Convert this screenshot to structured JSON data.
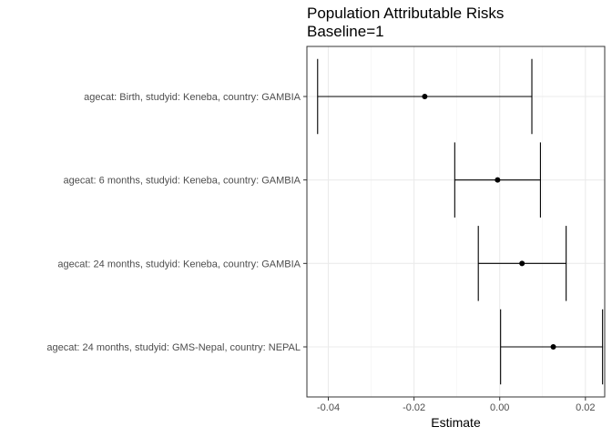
{
  "chart_data": {
    "type": "errorbar",
    "title": [
      "Population Attributable Risks",
      "Baseline=1"
    ],
    "xlabel": "Estimate",
    "ylabel": "",
    "xlim": [
      -0.045,
      0.0245
    ],
    "xticks": [
      -0.04,
      -0.02,
      0.0,
      0.02
    ],
    "xtick_labels": [
      "-0.04",
      "-0.02",
      "0.00",
      "0.02"
    ],
    "grid": true,
    "categories": [
      "agecat: Birth, studyid: Keneba, country: GAMBIA",
      "agecat: 6 months, studyid: Keneba, country: GAMBIA",
      "agecat: 24 months, studyid: Keneba, country: GAMBIA",
      "agecat: 24 months, studyid: GMS-Nepal, country: NEPAL"
    ],
    "estimates": [
      -0.0175,
      -0.0005,
      0.0052,
      0.0125
    ],
    "lower": [
      -0.0425,
      -0.0105,
      -0.005,
      0.0002
    ],
    "upper": [
      0.0075,
      0.0095,
      0.0155,
      0.024
    ]
  }
}
